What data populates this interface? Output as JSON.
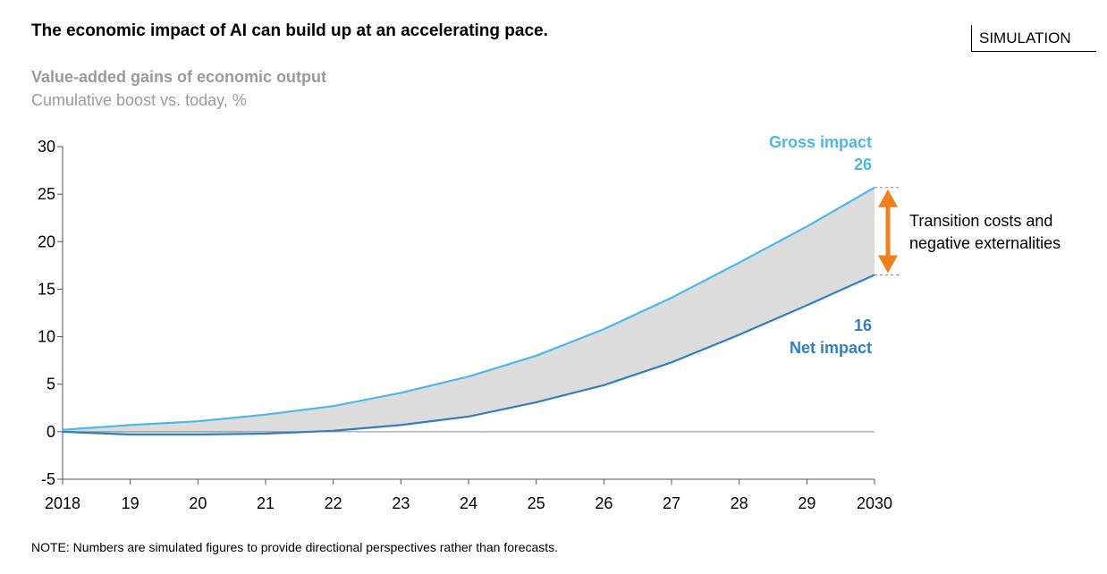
{
  "header": {
    "title": "The economic impact of AI can build up at an accelerating pace.",
    "tag": "SIMULATION"
  },
  "footer": {
    "note": "NOTE: Numbers are simulated figures to provide directional perspectives rather than forecasts."
  },
  "chart_data": {
    "type": "line",
    "title": "Value-added gains of economic output",
    "subtitle": "Cumulative boost vs. today, %",
    "xlabel": "",
    "ylabel": "",
    "x": [
      "2018",
      "19",
      "20",
      "21",
      "22",
      "23",
      "24",
      "25",
      "26",
      "27",
      "28",
      "29",
      "2030"
    ],
    "ylim": [
      -5,
      30
    ],
    "yticks": [
      "30",
      "25",
      "20",
      "15",
      "10",
      "5",
      "0",
      "-5"
    ],
    "ytick_values": [
      30,
      25,
      20,
      15,
      10,
      5,
      0,
      -5
    ],
    "grid": false,
    "series": [
      {
        "name": "Gross impact",
        "color": "#4db8e8",
        "values": [
          0.2,
          0.7,
          1.1,
          1.8,
          2.7,
          4.1,
          5.8,
          8.0,
          10.8,
          14.1,
          17.8,
          21.6,
          25.7
        ],
        "end_label": "26"
      },
      {
        "name": "Net impact",
        "color": "#2f7fc1",
        "values": [
          0.0,
          -0.3,
          -0.3,
          -0.2,
          0.1,
          0.7,
          1.6,
          3.1,
          4.9,
          7.3,
          10.2,
          13.3,
          16.5
        ],
        "end_label": "16"
      }
    ],
    "gap_fill_color": "#dcdcdc",
    "annotation": {
      "text_line1": "Transition costs and",
      "text_line2": "negative externalities",
      "arrow_color": "#f07f1e"
    }
  }
}
